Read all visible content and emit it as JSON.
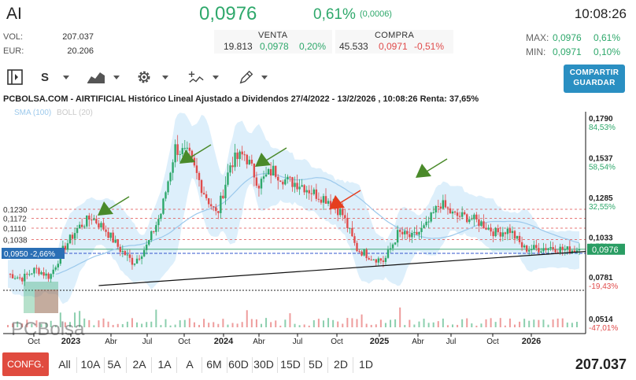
{
  "header": {
    "ticker": "AI",
    "last": "0,0976",
    "pct": "0,61%",
    "change": "(0,0006)",
    "time": "10:08:26",
    "vol_label": "VOL:",
    "vol_value": "207.037",
    "eur_label": "EUR:",
    "eur_value": "20.206",
    "venta": {
      "label": "VENTA",
      "qty": "19.813",
      "price": "0,0978",
      "pct": "0,20%"
    },
    "compra": {
      "label": "COMPRA",
      "qty": "45.533",
      "price": "0,0971",
      "pct": "-0,51%"
    },
    "max": {
      "label": "MAX:",
      "value": "0,0976",
      "pct": "0,61%"
    },
    "min": {
      "label": "MIN:",
      "value": "0,0971",
      "pct": "0,10%"
    }
  },
  "toolbar": {
    "series_label": "S",
    "share_line1": "COMPARTIR",
    "share_line2": "GUARDAR",
    "icons": [
      "panel-toggle-icon",
      "area-chart-icon",
      "gear-icon",
      "indicators-icon",
      "pencil-icon"
    ]
  },
  "colors": {
    "up": "#2ea86b",
    "down": "#e04b4b",
    "accent": "#2a8fc2",
    "band": "#d4ebfa",
    "sma": "#9cc9ec",
    "price_tag": "#2a9d63"
  },
  "chart_data": {
    "type": "line",
    "title": "PCBOLSA.COM - AIRTIFICIAL Histórico Lineal Ajustado a Dividendos 27/4/2022 - 13/2/2026 , 10:08:26 Renta: 37,65%",
    "indicators": [
      "SMA (100)",
      "BOLL (20)"
    ],
    "watermark": "PCBolsa",
    "x_ticks": [
      "Oct",
      "2023",
      "Abr",
      "Jul",
      "Oct",
      "2024",
      "Abr",
      "Jul",
      "Oct",
      "2025",
      "Abr",
      "Jul",
      "Oct",
      "2026"
    ],
    "y_right_ticks": [
      {
        "value": "0,1790",
        "pct": "84,53%"
      },
      {
        "value": "0,1537",
        "pct": "58,54%"
      },
      {
        "value": "0,1285",
        "pct": "32,55%"
      },
      {
        "value": "0,1033",
        "pct": "6,55%"
      },
      {
        "value": "0,0781",
        "pct": "-19,43%"
      },
      {
        "value": "0,0514",
        "pct": "-47,01%"
      }
    ],
    "y_left_levels": [
      "0,1230",
      "0,1172",
      "0,1110",
      "0,1038"
    ],
    "left_marker": {
      "value": "0,0950",
      "pct": "-2,66%"
    },
    "current_price": "0,0976",
    "ylim": [
      0.048,
      0.185
    ],
    "series": [
      {
        "name": "AI",
        "dates": [
          "2022-09",
          "2022-10",
          "2022-11",
          "2022-12",
          "2023-01",
          "2023-02",
          "2023-03",
          "2023-04",
          "2023-05",
          "2023-06",
          "2023-07",
          "2023-08",
          "2023-09",
          "2023-10",
          "2023-11",
          "2023-12",
          "2024-01",
          "2024-02",
          "2024-03",
          "2024-04",
          "2024-05",
          "2024-06",
          "2024-07",
          "2024-08",
          "2024-09",
          "2024-10",
          "2024-11",
          "2024-12",
          "2025-01",
          "2025-02",
          "2025-03",
          "2025-04",
          "2025-05",
          "2025-06",
          "2025-07",
          "2025-08",
          "2025-09",
          "2025-10",
          "2025-11",
          "2025-12",
          "2026-01",
          "2026-02"
        ],
        "values": [
          0.082,
          0.079,
          0.085,
          0.08,
          0.098,
          0.111,
          0.118,
          0.11,
          0.098,
          0.089,
          0.1,
          0.121,
          0.162,
          0.157,
          0.135,
          0.119,
          0.153,
          0.158,
          0.139,
          0.148,
          0.141,
          0.139,
          0.133,
          0.129,
          0.12,
          0.098,
          0.093,
          0.09,
          0.108,
          0.105,
          0.112,
          0.127,
          0.119,
          0.118,
          0.114,
          0.108,
          0.11,
          0.098,
          0.098,
          0.099,
          0.097,
          0.0976
        ]
      }
    ]
  },
  "bottom": {
    "config_label": "CONFG.",
    "ranges": [
      "All",
      "10A",
      "5A",
      "2A",
      "1A",
      "A",
      "6M",
      "60D",
      "30D",
      "15D",
      "5D",
      "2D",
      "1D"
    ],
    "volume_total": "207.037"
  }
}
